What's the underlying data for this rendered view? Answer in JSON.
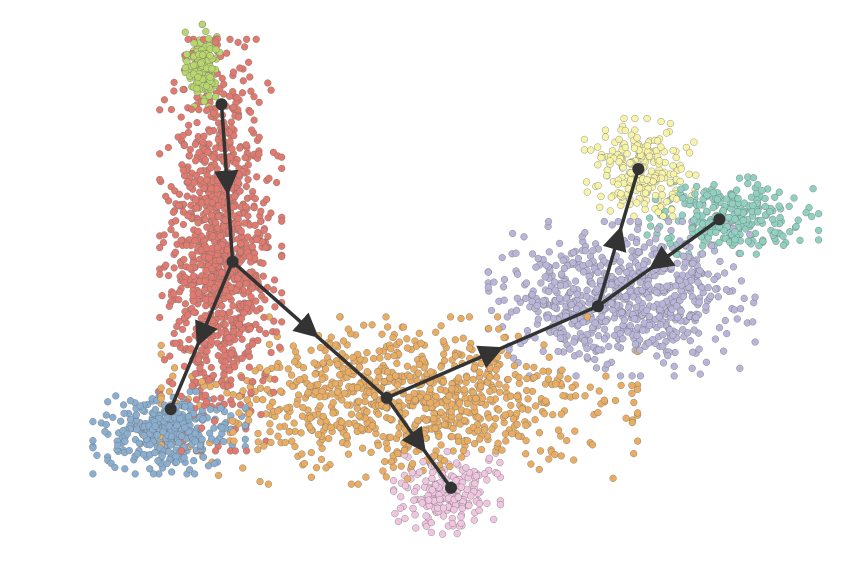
{
  "chart_data": {
    "type": "scatter",
    "title": "",
    "xlabel": "",
    "ylabel": "",
    "axes_visible": false,
    "grid": false,
    "legend": "none",
    "xlim": [
      0,
      100
    ],
    "ylim": [
      0,
      100
    ],
    "clusters": [
      {
        "id": "c_green",
        "color": "#b9d66c",
        "center": [
          19.2,
          91.5
        ],
        "spread": [
          0.9,
          3.2
        ],
        "n": 170,
        "relative_size": "small"
      },
      {
        "id": "c_red",
        "color": "#e07a6f",
        "center": [
          21.5,
          58.0
        ],
        "spread": [
          3.2,
          16.0
        ],
        "n": 1100,
        "relative_size": "large"
      },
      {
        "id": "c_blue",
        "color": "#8aaed0",
        "center": [
          15.0,
          23.0
        ],
        "spread": [
          4.0,
          3.2
        ],
        "n": 340,
        "relative_size": "medium"
      },
      {
        "id": "c_orange",
        "color": "#e8ad63",
        "center": [
          44.0,
          29.0
        ],
        "spread": [
          12.5,
          6.5
        ],
        "n": 900,
        "relative_size": "large"
      },
      {
        "id": "c_pink",
        "color": "#f0c5df",
        "center": [
          50.0,
          12.0
        ],
        "spread": [
          2.8,
          3.5
        ],
        "n": 200,
        "relative_size": "small"
      },
      {
        "id": "c_purple",
        "color": "#b8b5d8",
        "center": [
          72.0,
          48.0
        ],
        "spread": [
          7.0,
          6.0
        ],
        "n": 720,
        "relative_size": "large"
      },
      {
        "id": "c_yellow",
        "color": "#f7f3a8",
        "center": [
          74.5,
          72.5
        ],
        "spread": [
          3.0,
          3.8
        ],
        "n": 230,
        "relative_size": "small"
      },
      {
        "id": "c_teal",
        "color": "#90d0c0",
        "center": [
          86.0,
          63.5
        ],
        "spread": [
          4.5,
          3.0
        ],
        "n": 260,
        "relative_size": "small"
      }
    ],
    "trajectory": {
      "color": "#333333",
      "nodes": [
        {
          "id": "n1",
          "x": 21.6,
          "y": 84.3
        },
        {
          "id": "n2",
          "x": 23.0,
          "y": 54.9
        },
        {
          "id": "n3",
          "x": 15.2,
          "y": 27.4
        },
        {
          "id": "n4",
          "x": 42.4,
          "y": 29.5
        },
        {
          "id": "n5",
          "x": 50.5,
          "y": 12.7
        },
        {
          "id": "n6",
          "x": 69.0,
          "y": 46.6
        },
        {
          "id": "n7",
          "x": 74.1,
          "y": 72.2
        },
        {
          "id": "n8",
          "x": 84.3,
          "y": 62.8
        }
      ],
      "edges": [
        {
          "from": "n1",
          "to": "n2"
        },
        {
          "from": "n2",
          "to": "n3"
        },
        {
          "from": "n2",
          "to": "n4"
        },
        {
          "from": "n4",
          "to": "n5"
        },
        {
          "from": "n4",
          "to": "n6"
        },
        {
          "from": "n6",
          "to": "n7"
        },
        {
          "from": "n8",
          "to": "n6"
        }
      ]
    }
  }
}
